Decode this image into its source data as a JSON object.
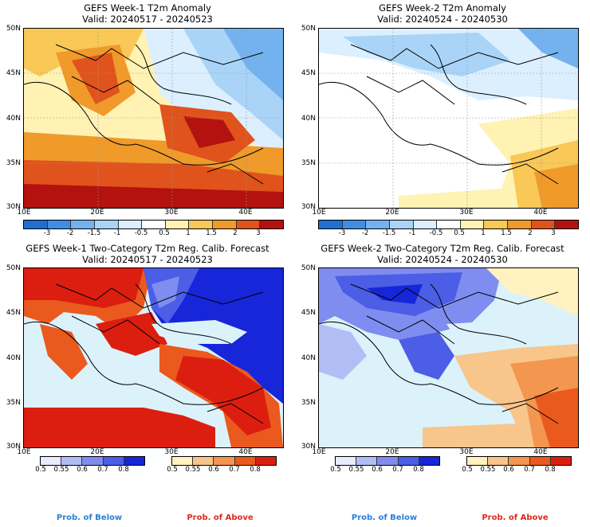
{
  "panels": [
    {
      "title_line1": "GEFS Week-1 T2m Anomaly",
      "title_line2": "Valid: 20240517 - 20240523",
      "lat_labels": [
        "50N",
        "45N",
        "40N",
        "35N",
        "30N"
      ],
      "lon_labels": [
        "10E",
        "20E",
        "30E",
        "40E"
      ],
      "colorbar_labels": [
        "-3",
        "-2",
        "-1.5",
        "-1",
        "-0.5",
        "0.5",
        "1",
        "1.5",
        "2",
        "3"
      ]
    },
    {
      "title_line1": "GEFS Week-2 T2m Anomaly",
      "title_line2": "Valid: 20240524 - 20240530",
      "lat_labels": [
        "50N",
        "45N",
        "40N",
        "35N",
        "30N"
      ],
      "lon_labels": [
        "10E",
        "20E",
        "30E",
        "40E"
      ],
      "colorbar_labels": [
        "-3",
        "-2",
        "-1.5",
        "-1",
        "-0.5",
        "0.5",
        "1",
        "1.5",
        "2",
        "3"
      ]
    },
    {
      "title_line1": "GEFS Week-1 Two-Category T2m Reg. Calib. Forecast",
      "title_line2": "Valid: 20240517 - 20240523",
      "lat_labels": [
        "50N",
        "45N",
        "40N",
        "35N",
        "30N"
      ],
      "lon_labels": [
        "10E",
        "20E",
        "30E",
        "40E"
      ],
      "below_labels": [
        "0.5",
        "0.55",
        "0.6",
        "0.7",
        "0.8"
      ],
      "above_labels": [
        "0.5",
        "0.55",
        "0.6",
        "0.7",
        "0.8"
      ]
    },
    {
      "title_line1": "GEFS Week-2 Two-Category T2m Reg. Calib. Forecast",
      "title_line2": "Valid: 20240524 - 20240530",
      "lat_labels": [
        "50N",
        "45N",
        "40N",
        "35N",
        "30N"
      ],
      "lon_labels": [
        "10E",
        "20E",
        "30E",
        "40E"
      ],
      "below_labels": [
        "0.5",
        "0.55",
        "0.6",
        "0.7",
        "0.8"
      ],
      "above_labels": [
        "0.5",
        "0.55",
        "0.6",
        "0.7",
        "0.8"
      ]
    }
  ],
  "footer": {
    "below_label": "Prob. of Below",
    "above_label": "Prob. of Above"
  },
  "colors": {
    "anomaly_scale": [
      "#1f6fd1",
      "#3f8ee4",
      "#74b2ef",
      "#a9d4f7",
      "#dcefff",
      "#ffffff",
      "#fff2b3",
      "#f9c857",
      "#f09a2a",
      "#e0531c",
      "#b3120f"
    ],
    "below_scale": [
      "#e9ecff",
      "#b3bdf5",
      "#7f8df0",
      "#4c5de6",
      "#1726d8"
    ],
    "above_scale": [
      "#fff2c0",
      "#f8c68a",
      "#f39650",
      "#ea5a1e",
      "#dc1e10"
    ],
    "water": "#dcf2fb"
  }
}
